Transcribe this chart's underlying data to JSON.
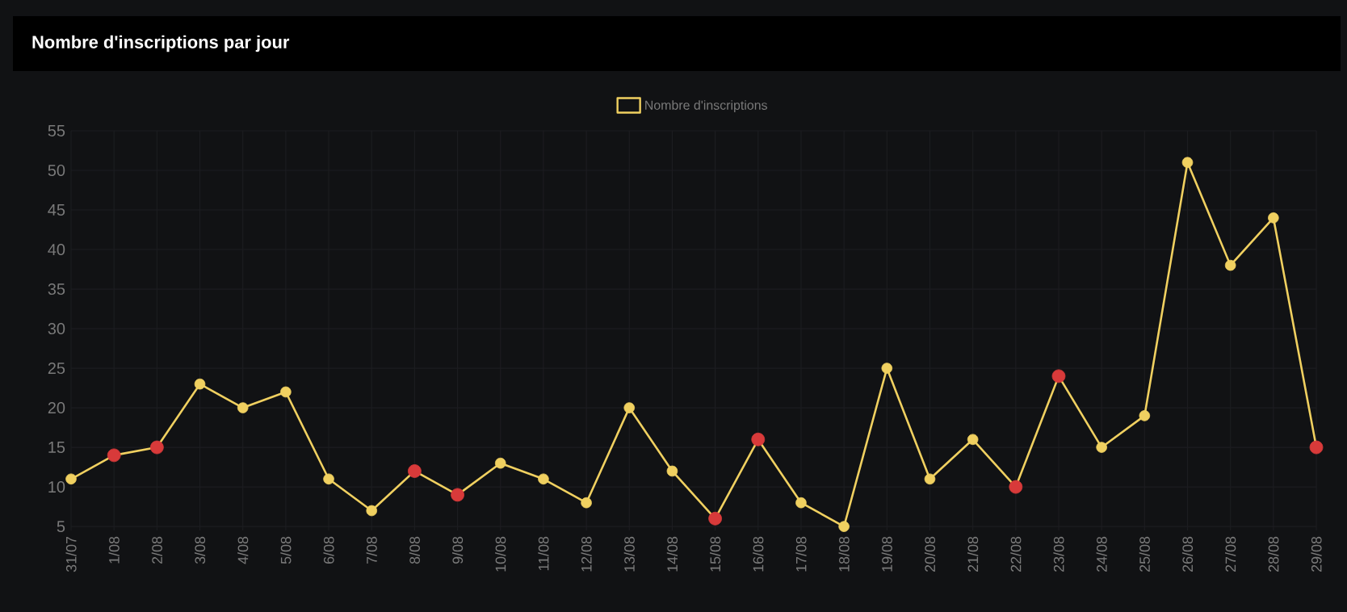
{
  "chart_data": {
    "type": "line",
    "title": "Nombre d'inscriptions par jour",
    "categories": [
      "31/07",
      "1/08",
      "2/08",
      "3/08",
      "4/08",
      "5/08",
      "6/08",
      "7/08",
      "8/08",
      "9/08",
      "10/08",
      "11/08",
      "12/08",
      "13/08",
      "14/08",
      "15/08",
      "16/08",
      "17/08",
      "18/08",
      "19/08",
      "20/08",
      "21/08",
      "22/08",
      "23/08",
      "24/08",
      "25/08",
      "26/08",
      "27/08",
      "28/08",
      "29/08"
    ],
    "series": [
      {
        "name": "Nombre d'inscriptions",
        "color": "#f0d060",
        "values": [
          11,
          14,
          15,
          23,
          20,
          22,
          11,
          7,
          12,
          9,
          13,
          11,
          8,
          20,
          12,
          6,
          16,
          8,
          5,
          25,
          11,
          16,
          10,
          24,
          15,
          19,
          51,
          38,
          44,
          15
        ],
        "colors": [
          "#f0d060",
          "#d83a3a",
          "#d83a3a",
          "#f0d060",
          "#f0d060",
          "#f0d060",
          "#f0d060",
          "#f0d060",
          "#d83a3a",
          "#d83a3a",
          "#f0d060",
          "#f0d060",
          "#f0d060",
          "#f0d060",
          "#f0d060",
          "#d83a3a",
          "#d83a3a",
          "#f0d060",
          "#f0d060",
          "#f0d060",
          "#f0d060",
          "#f0d060",
          "#d83a3a",
          "#d83a3a",
          "#f0d060",
          "#f0d060",
          "#f0d060",
          "#f0d060",
          "#f0d060",
          "#d83a3a"
        ]
      }
    ],
    "ylim": [
      4.5,
      55
    ],
    "yticks": [
      5,
      10,
      15,
      20,
      25,
      30,
      35,
      40,
      45,
      50,
      55
    ],
    "grid": true,
    "legend": "top",
    "marker": "circle",
    "line_style": "solid"
  }
}
